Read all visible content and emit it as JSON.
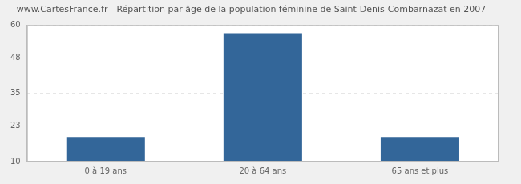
{
  "chart_data": {
    "type": "bar",
    "title": "www.CartesFrance.fr - Répartition par âge de la population féminine de Saint-Denis-Combarnazat en 2007",
    "categories": [
      "0 à 19 ans",
      "20 à 64 ans",
      "65 ans et plus"
    ],
    "values": [
      19,
      57,
      19
    ],
    "color": "#336699",
    "ylim": [
      10,
      60
    ],
    "yticks": [
      10,
      23,
      35,
      48,
      60
    ],
    "grid": true
  }
}
